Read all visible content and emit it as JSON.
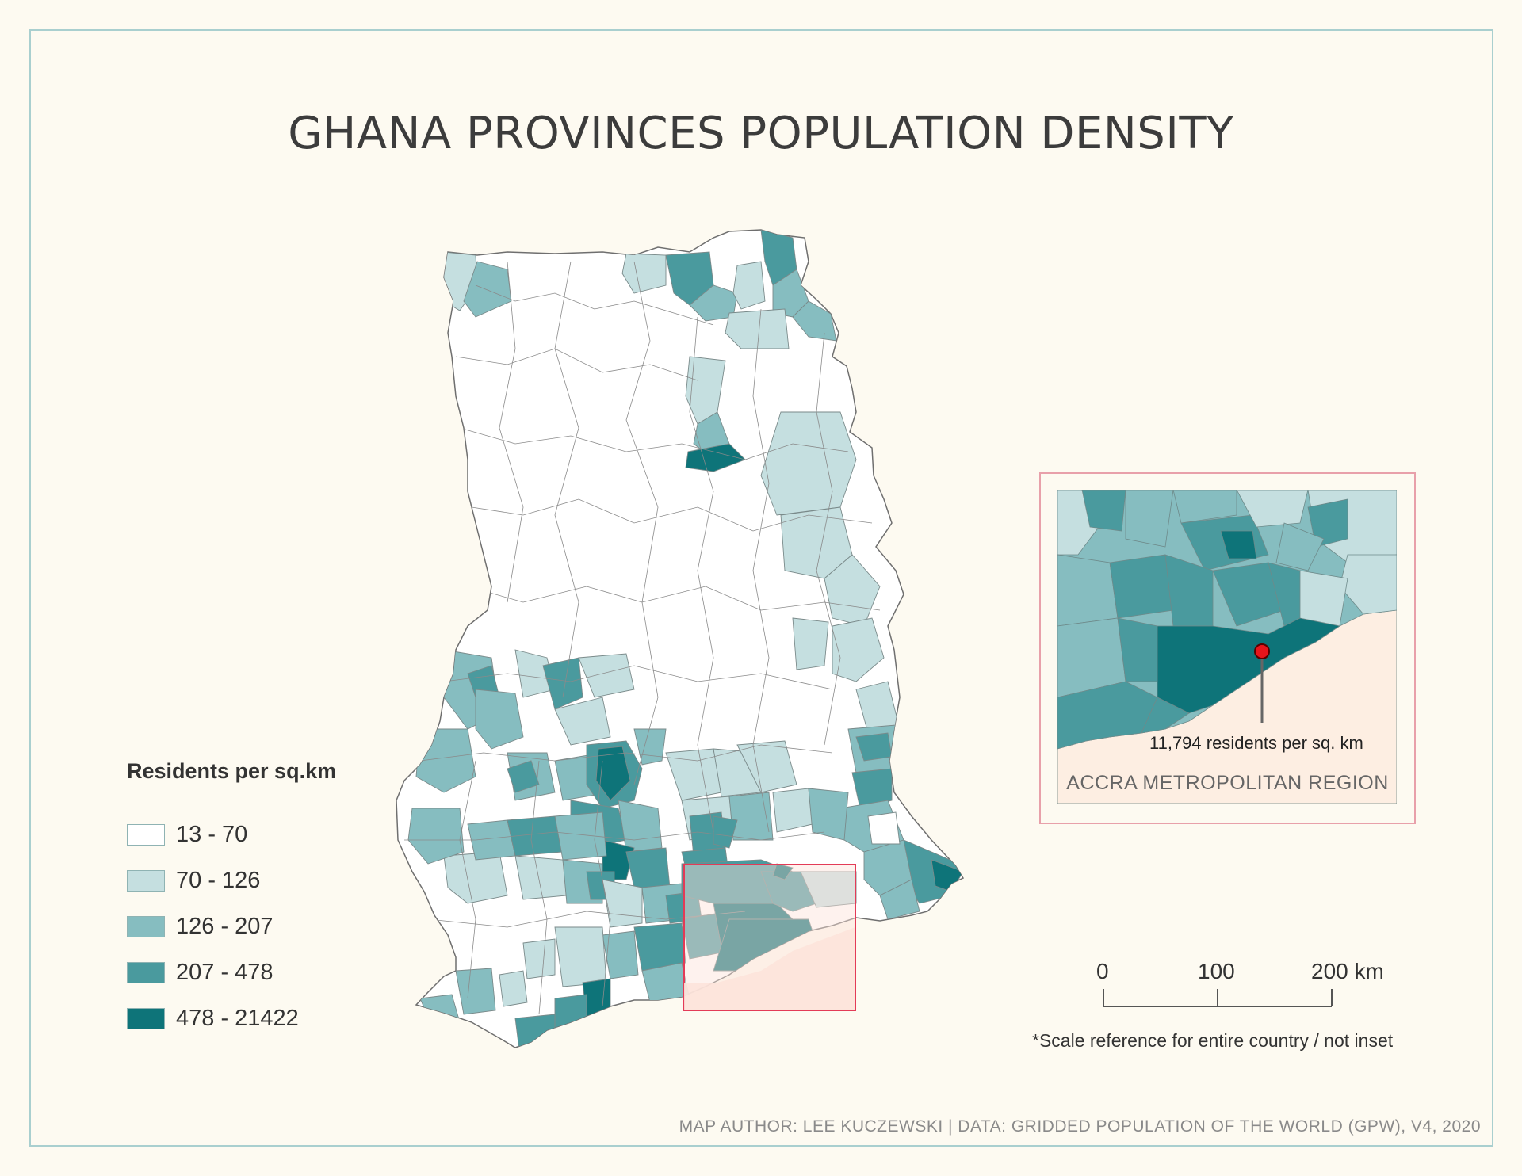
{
  "title": "GHANA PROVINCES POPULATION DENSITY",
  "legend": {
    "title": "Residents per sq.km",
    "classes": [
      {
        "label": "13 - 70",
        "color": "#ffffff"
      },
      {
        "label": "70 - 126",
        "color": "#c5dfe0"
      },
      {
        "label": "126 - 207",
        "color": "#86bdc0"
      },
      {
        "label": "207 - 478",
        "color": "#4a9a9e"
      },
      {
        "label": "478 - 21422",
        "color": "#0e7479"
      }
    ]
  },
  "inset": {
    "annotation": "11,794 residents per sq. km",
    "caption": "ACCRA METROPOLITAN REGION",
    "marker_color": "#e8151b",
    "frame_color": "#e33b57"
  },
  "scale": {
    "ticks": [
      "0",
      "100",
      "200 km"
    ],
    "note": "*Scale reference for entire country / not inset"
  },
  "credit": "MAP AUTHOR: LEE KUCZEWSKI | DATA: GRIDDED POPULATION OF THE WORLD (GPW), V4, 2020",
  "colors": {
    "background": "#fdfaf1",
    "sea_highlight": "#fde3da",
    "district_stroke": "#7f7f7f"
  }
}
